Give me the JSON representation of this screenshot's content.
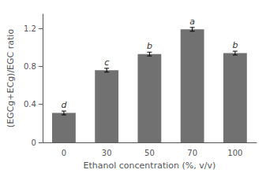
{
  "chart_data": {
    "type": "bar",
    "categories": [
      "0",
      "30",
      "50",
      "70",
      "100"
    ],
    "values": [
      0.31,
      0.76,
      0.93,
      1.19,
      0.94
    ],
    "errors": [
      0.02,
      0.02,
      0.02,
      0.02,
      0.02
    ],
    "annotations": [
      "d",
      "c",
      "b",
      "a",
      "b"
    ],
    "color": "#717171",
    "xlabel": "Ethanol concentration (%, v/v)",
    "ylabel": "(EGCg+ECg)/EGC ratio",
    "ylim": [
      0,
      1.35
    ],
    "yticks": [
      0,
      0.4,
      0.8,
      1.2
    ],
    "grid": false
  }
}
